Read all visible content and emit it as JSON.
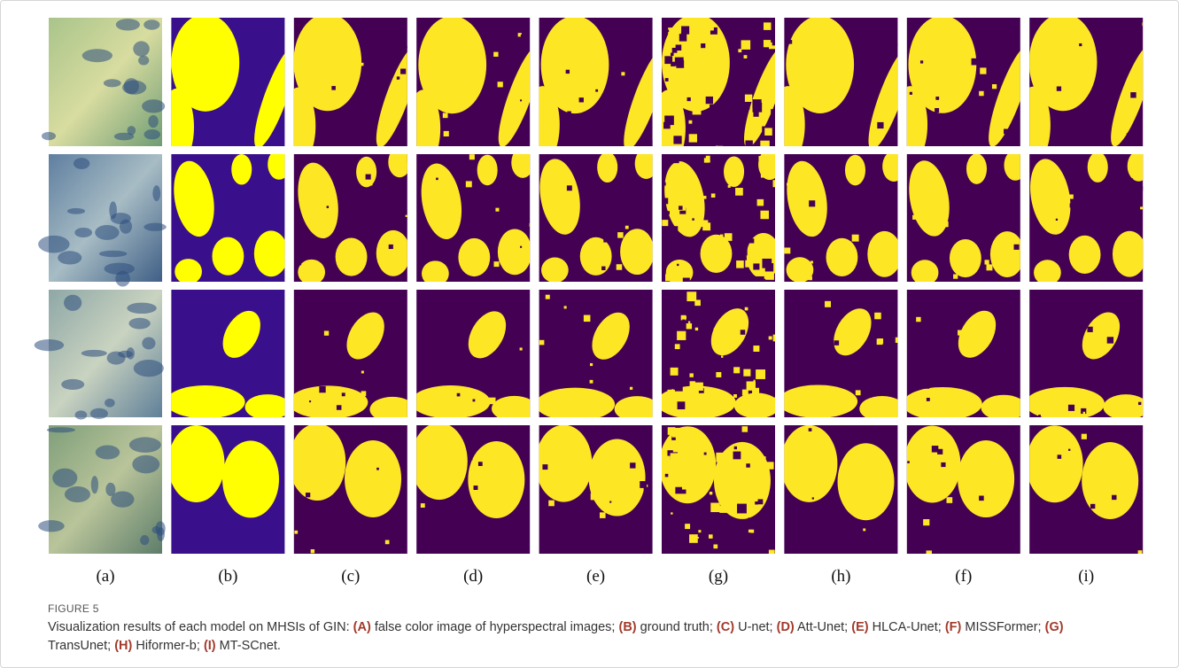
{
  "figure": {
    "columns": [
      "(a)",
      "(b)",
      "(c)",
      "(d)",
      "(e)",
      "(g)",
      "(h)",
      "(f)",
      "(i)"
    ],
    "label": "FIGURE 5",
    "caption": {
      "intro": "Visualization results of each model on MHSIs of GIN:",
      "items": [
        {
          "key": "(A)",
          "text": "false color image of hyperspectral images;"
        },
        {
          "key": "(B)",
          "text": "ground truth;"
        },
        {
          "key": "(C)",
          "text": "U-net;"
        },
        {
          "key": "(D)",
          "text": "Att-Unet;"
        },
        {
          "key": "(E)",
          "text": "HLCA-Unet;"
        },
        {
          "key": "(F)",
          "text": "MISSFormer;"
        },
        {
          "key": "(G)",
          "text": "TransUnet;"
        },
        {
          "key": "(H)",
          "text": "Hiformer-b;"
        },
        {
          "key": "(I)",
          "text": "MT-SCnet."
        }
      ]
    }
  }
}
